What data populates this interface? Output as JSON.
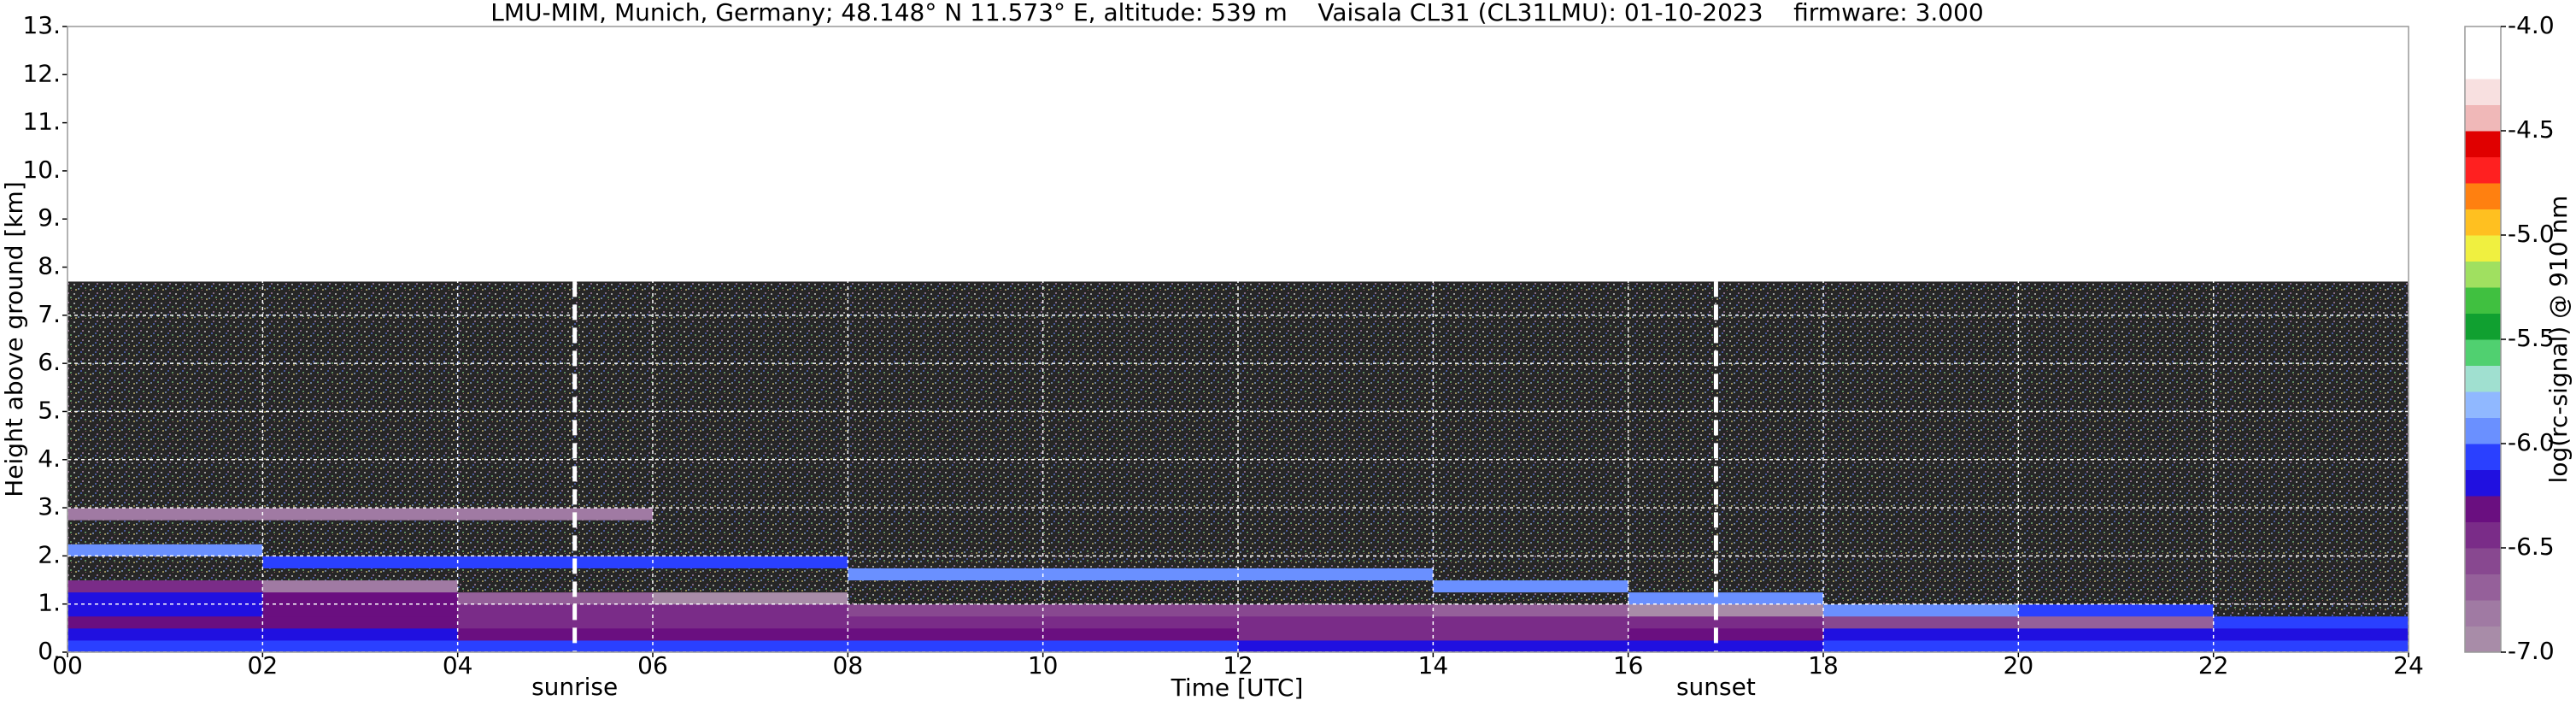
{
  "chart_data": {
    "type": "heatmap",
    "title": "LMU-MIM, Munich, Germany; 48.148° N 11.573° E, altitude: 539 m    Vaisala CL31 (CL31LMU): 01-10-2023    firmware: 3.000",
    "x_label": "Time [UTC]",
    "y_label": "Height above ground [km]",
    "colorbar_label": "log(rc-signal) @ 910 nm",
    "xlim": [
      0,
      24
    ],
    "xticks": [
      {
        "value": 0,
        "label": "00"
      },
      {
        "value": 2,
        "label": "02"
      },
      {
        "value": 4,
        "label": "04"
      },
      {
        "value": 6,
        "label": "06"
      },
      {
        "value": 8,
        "label": "08"
      },
      10,
      12,
      14,
      16,
      18,
      20,
      22,
      24
    ],
    "ylim": [
      0,
      13
    ],
    "yticks": [
      {
        "value": 0,
        "label": "0."
      },
      {
        "value": 1,
        "label": "1."
      },
      {
        "value": 2,
        "label": "2."
      },
      {
        "value": 3,
        "label": "3."
      },
      {
        "value": 4,
        "label": "4."
      },
      {
        "value": 5,
        "label": "5."
      },
      {
        "value": 6,
        "label": "6."
      },
      {
        "value": 7,
        "label": "7."
      },
      {
        "value": 8,
        "label": "8."
      },
      {
        "value": 9,
        "label": "9."
      },
      {
        "value": 10,
        "label": "10."
      },
      {
        "value": 11,
        "label": "11."
      },
      {
        "value": 12,
        "label": "12."
      },
      {
        "value": 13,
        "label": "13."
      }
    ],
    "zlim": [
      -7,
      -4
    ],
    "zticks": [
      {
        "value": -7,
        "label": "-7.0"
      },
      -6.5,
      {
        "value": -6,
        "label": "-6.0"
      },
      -5.5,
      {
        "value": -5,
        "label": "-5.0"
      },
      -4.5,
      {
        "value": -4,
        "label": "-4.0"
      }
    ],
    "grid": true,
    "grid_color": "#ffffff",
    "under_color": "#262626",
    "colormap": [
      "#a88ca8",
      "#a07aa3",
      "#95609a",
      "#884890",
      "#7a2c88",
      "#6a0f80",
      "#2010e0",
      "#2a40ff",
      "#6a90ff",
      "#90b8ff",
      "#a0e0d0",
      "#50d070",
      "#10a030",
      "#40c040",
      "#a0e060",
      "#f0f040",
      "#ffc020",
      "#ff8010",
      "#ff2020",
      "#e00000",
      "#f0b8b8",
      "#f8e0e0",
      "#ffffff",
      "#ffffff"
    ],
    "xbins": [
      0,
      2,
      4,
      6,
      8,
      10,
      12,
      14,
      16,
      18,
      20,
      22,
      24
    ],
    "ybins": [
      0,
      0.25,
      0.5,
      0.75,
      1,
      1.25,
      1.5,
      1.75,
      2,
      2.25,
      2.5,
      2.75,
      3,
      4,
      5,
      6,
      7,
      7.7
    ],
    "values": [
      [
        -6.1,
        -6.1,
        -6.05,
        -6.05,
        -6.1,
        -6.1,
        -6.15,
        -6.2,
        -6.15,
        -6.1,
        -6.1,
        -6.1
      ],
      [
        -6.2,
        -6.25,
        -6.3,
        -6.3,
        -6.3,
        -6.35,
        -6.4,
        -6.4,
        -6.35,
        -6.2,
        -6.15,
        -6.15
      ],
      [
        -6.3,
        -6.35,
        -6.4,
        -6.4,
        -6.45,
        -6.5,
        -6.5,
        -6.5,
        -6.45,
        -6.6,
        -6.7,
        -6.05
      ],
      [
        -6.2,
        -6.3,
        -6.4,
        -6.45,
        -6.55,
        -6.6,
        -6.6,
        -6.65,
        -6.9,
        -6.0,
        -6.05,
        -7.2
      ],
      [
        -6.15,
        -6.3,
        -6.7,
        -6.9,
        -7.2,
        -7.2,
        -7.2,
        -7.2,
        -6.0,
        -7.2,
        -7.2,
        -7.2
      ],
      [
        -6.5,
        -6.8,
        -7.2,
        -7.2,
        -7.2,
        -7.2,
        -7.2,
        -6.0,
        -7.2,
        -7.2,
        -7.2,
        -7.2
      ],
      [
        -7.2,
        -7.2,
        -7.2,
        -7.2,
        -6.0,
        -5.95,
        -6.0,
        -7.2,
        -7.2,
        -7.2,
        -7.2,
        -7.2
      ],
      [
        -7.2,
        -6.05,
        -6.05,
        -6.05,
        -7.2,
        -7.2,
        -7.2,
        -7.2,
        -7.2,
        -7.2,
        -7.2,
        -7.2
      ],
      [
        -6.0,
        -7.2,
        -7.2,
        -7.2,
        -7.2,
        -7.2,
        -7.2,
        -7.2,
        -7.2,
        -7.2,
        -7.2,
        -7.2
      ],
      [
        -7.2,
        -7.2,
        -7.2,
        -7.2,
        -7.2,
        -7.2,
        -7.2,
        -7.2,
        -7.2,
        -7.2,
        -7.2,
        -7.2
      ],
      [
        -7.2,
        -7.2,
        -7.2,
        -7.2,
        -7.2,
        -7.2,
        -7.2,
        -7.2,
        -7.2,
        -7.2,
        -7.2,
        -7.2
      ],
      [
        -6.8,
        -6.8,
        -6.8,
        -7.2,
        -7.2,
        -7.2,
        -7.2,
        -7.2,
        -7.2,
        -7.2,
        -7.2,
        -7.2
      ],
      [
        -7.2,
        -7.2,
        -7.2,
        -7.2,
        -7.2,
        -7.2,
        -7.2,
        -7.2,
        -7.2,
        -7.2,
        -7.2,
        -7.2
      ],
      [
        -7.2,
        -7.2,
        -7.2,
        -7.2,
        -7.2,
        -7.2,
        -7.2,
        -7.2,
        -7.2,
        -7.2,
        -7.2,
        -7.2
      ],
      [
        -7.2,
        -7.2,
        -7.2,
        -7.2,
        -7.2,
        -7.2,
        -7.2,
        -7.2,
        -7.2,
        -7.2,
        -7.2,
        -7.2
      ],
      [
        -7.2,
        -7.2,
        -7.2,
        -7.2,
        -7.2,
        -7.2,
        -7.2,
        -7.2,
        -7.2,
        -7.2,
        -7.2,
        -7.2
      ],
      [
        -7.2,
        -7.2,
        -7.2,
        -7.2,
        -7.2,
        -7.2,
        -7.2,
        -7.2,
        -7.2,
        -7.2,
        -7.2,
        -7.2
      ]
    ],
    "annotations": [
      {
        "text": "sunrise",
        "x": 5.2
      },
      {
        "text": "sunset",
        "x": 16.9
      }
    ]
  }
}
